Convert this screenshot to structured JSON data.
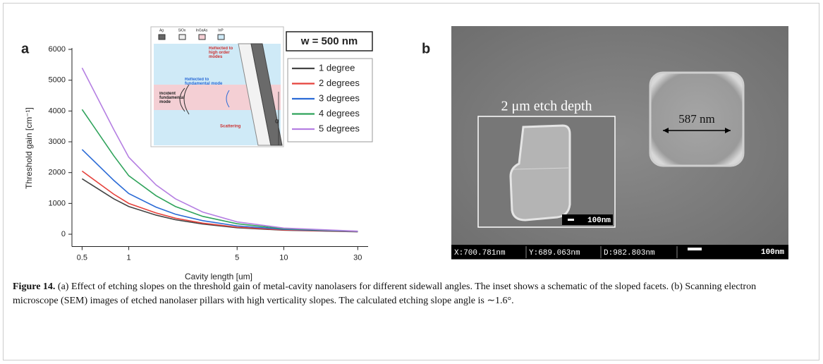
{
  "chart_data": {
    "type": "line",
    "panel_label": "a",
    "x_label": "Cavity length [um]",
    "y_label": "Threshold gain [cm⁻¹]",
    "x": [
      0.5,
      0.8,
      1,
      1.5,
      2,
      3,
      5,
      10,
      30
    ],
    "series": [
      {
        "name": "1 degree",
        "color": "#444444",
        "values": [
          1800,
          1150,
          900,
          620,
          470,
          330,
          210,
          130,
          80
        ]
      },
      {
        "name": "2 degrees",
        "color": "#e5413b",
        "values": [
          2050,
          1300,
          1000,
          690,
          520,
          360,
          230,
          140,
          85
        ]
      },
      {
        "name": "3 degrees",
        "color": "#2b6bd6",
        "values": [
          2750,
          1750,
          1320,
          880,
          650,
          440,
          270,
          160,
          90
        ]
      },
      {
        "name": "4 degrees",
        "color": "#2fa35b",
        "values": [
          4050,
          2550,
          1900,
          1250,
          900,
          580,
          340,
          180,
          95
        ]
      },
      {
        "name": "5 degrees",
        "color": "#b57fe2",
        "values": [
          5400,
          3400,
          2500,
          1600,
          1150,
          720,
          400,
          200,
          100
        ]
      }
    ],
    "legend_title": "w = 500 nm",
    "xlog": true,
    "xlim": [
      0.43,
      35
    ],
    "xticks": [
      0.5,
      1,
      5,
      10,
      30
    ],
    "ylim": [
      -400,
      6000
    ],
    "yticks": [
      0,
      1000,
      2000,
      3000,
      4000,
      5000,
      6000
    ],
    "inset": {
      "materials": [
        "Ag",
        "SiOx",
        "InGaAs",
        "InP"
      ],
      "reflected_high": "Reflected to high order modes",
      "reflected_fundamental": "Reflected to fundamental mode",
      "incident": "Incident fundamental mode",
      "scattering": "Scattering",
      "angle": "α"
    }
  },
  "sem": {
    "panel_label": "b",
    "inset_title": "2 μm etch depth",
    "size_label": "587 nm",
    "inset_scale": "100nm",
    "scale": "100nm",
    "readouts": [
      "X:700.781nm",
      "Y:689.063nm",
      "D:982.803nm"
    ]
  },
  "caption": {
    "label": "Figure 14.",
    "text": "(a) Effect of etching slopes on the threshold gain of metal-cavity nanolasers for different sidewall angles. The inset shows a schematic of the sloped facets. (b) Scanning electron microscope (SEM) images of etched nanolaser pillars with high verticality slopes. The calculated etching slope angle is ∼1.6°."
  }
}
